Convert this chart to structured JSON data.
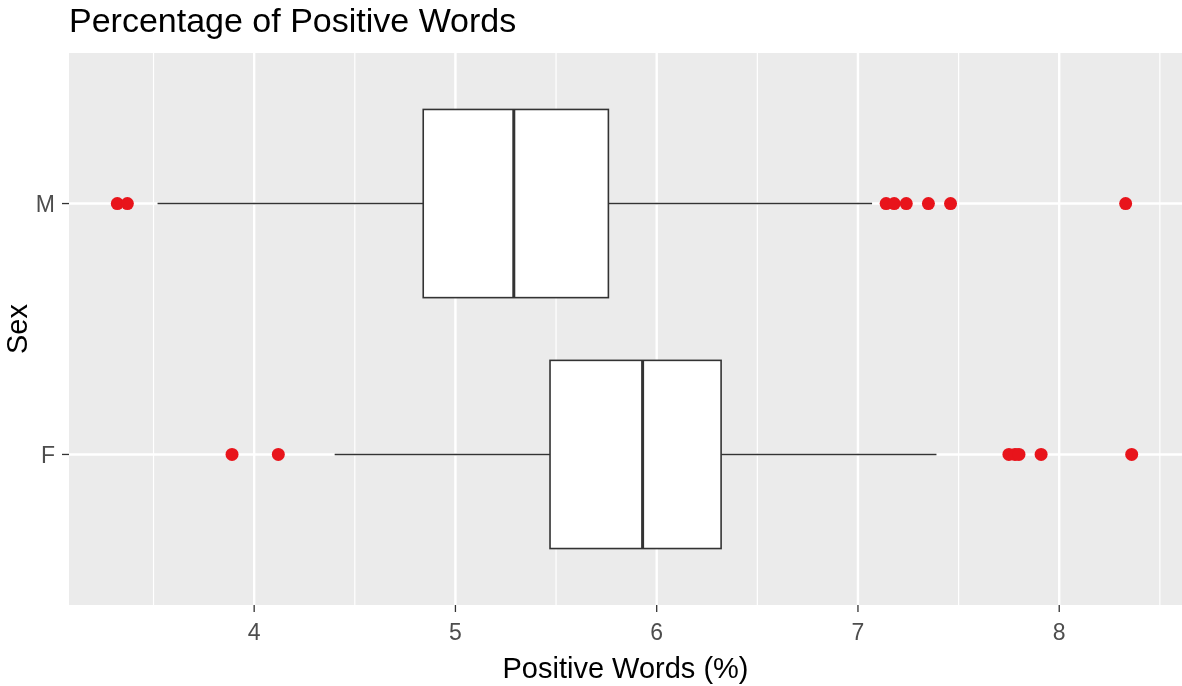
{
  "chart_data": {
    "type": "box",
    "title": "Percentage of Positive Words",
    "xlabel": "Positive Words (%)",
    "ylabel": "Sex",
    "orientation": "horizontal",
    "categories": [
      "M",
      "F"
    ],
    "boxes": [
      {
        "low": 3.52,
        "q1": 4.84,
        "median": 5.29,
        "q3": 5.76,
        "high": 7.07,
        "outliers": [
          3.32,
          3.37,
          7.14,
          7.18,
          7.24,
          7.35,
          7.46,
          8.33
        ]
      },
      {
        "low": 4.4,
        "q1": 5.47,
        "median": 5.93,
        "q3": 6.32,
        "high": 7.39,
        "outliers": [
          3.89,
          4.12,
          7.75,
          7.78,
          7.8,
          7.91,
          8.36
        ]
      }
    ],
    "color": "#ffffff",
    "xlim": [
      3.08,
      8.61
    ],
    "xticks": [
      4,
      5,
      6,
      7,
      8
    ],
    "grid": true
  }
}
